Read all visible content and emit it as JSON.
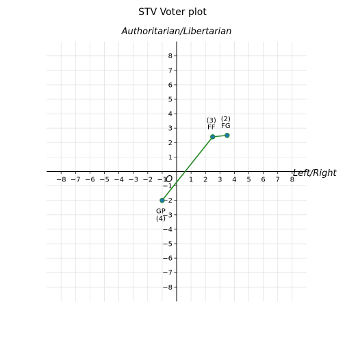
{
  "chart_data": {
    "type": "line",
    "title": "STV Voter plot",
    "subtitle": "Authoritarian/Libertarian",
    "xlabel": "Left/Right",
    "origin_label": "O",
    "xlim": [
      -9,
      9
    ],
    "ylim": [
      -9,
      9
    ],
    "ticks": [
      -8,
      -7,
      -6,
      -5,
      -4,
      -3,
      -2,
      -1,
      1,
      2,
      3,
      4,
      5,
      6,
      7,
      8
    ],
    "grid": true,
    "line_color": "#228822",
    "marker_color": "#1f77b4",
    "points": [
      {
        "name": "GP",
        "rank": "(4)",
        "x": -1.0,
        "y": -2.0
      },
      {
        "name": "FF",
        "rank": "(3)",
        "x": 2.5,
        "y": 2.4
      },
      {
        "name": "FG",
        "rank": "(2)",
        "x": 3.5,
        "y": 2.5
      }
    ]
  }
}
